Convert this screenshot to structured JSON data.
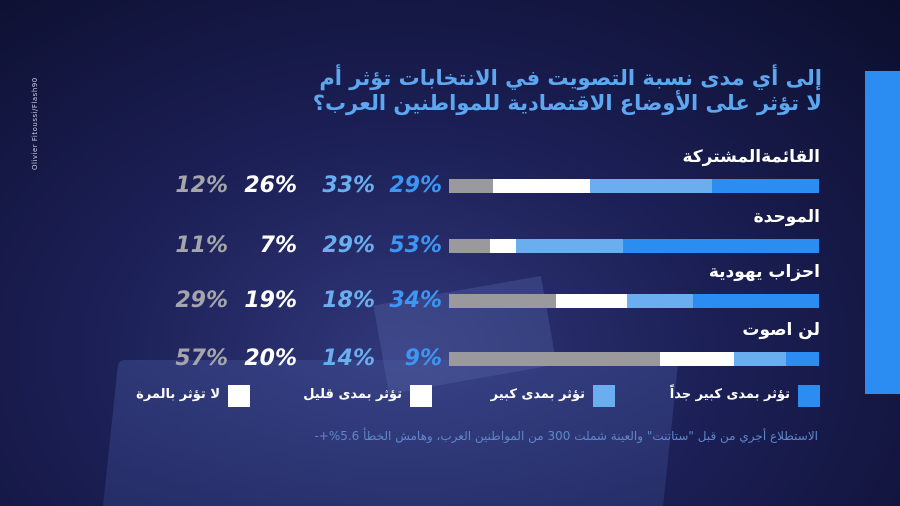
{
  "credit": "Olivier Fitoussi/Flash90",
  "title": "إلى أي مدى نسبة التصويت في الانتخابات تؤثر أم لا تؤثر على الأوضاع الاقتصادية للمواطنين العرب؟",
  "colors": {
    "very_large": "#2b8cf2",
    "large": "#6aaef0",
    "small": "#ffffff",
    "none": "#9a9a9e",
    "pct_very_large": "#3d95f4",
    "pct_large": "#6aaef0",
    "pct_small": "#ffffff",
    "pct_none": "#a5a5ac",
    "row4_remainder": "#5a6a9a"
  },
  "legend": [
    {
      "label": "تؤثر بمدى كبير جداً",
      "color": "#2b8cf2"
    },
    {
      "label": "تؤثر بمدى كبير",
      "color": "#6aaef0"
    },
    {
      "label": "تؤثر بمدى قليل",
      "color": "#ffffff"
    },
    {
      "label": "لا تؤثر بالمرة",
      "color": "#ffffff"
    }
  ],
  "chart_data": {
    "type": "bar",
    "orientation": "horizontal-stacked",
    "title": "إلى أي مدى نسبة التصويت في الانتخابات تؤثر أم لا تؤثر على الأوضاع الاقتصادية للمواطنين العرب؟",
    "categories": [
      "القائمةالمشتركة",
      "الموحدة",
      "احزاب يهودية",
      "لن اصوت"
    ],
    "series": [
      {
        "name": "تؤثر بمدى كبير جداً",
        "values": [
          29,
          53,
          34,
          9
        ]
      },
      {
        "name": "تؤثر بمدى كبير",
        "values": [
          33,
          29,
          18,
          14
        ]
      },
      {
        "name": "تؤثر بمدى قليل",
        "values": [
          26,
          7,
          19,
          20
        ]
      },
      {
        "name": "لا تؤثر بالمرة",
        "values": [
          12,
          11,
          29,
          57
        ]
      }
    ],
    "value_labels": [
      [
        "29%",
        "33%",
        "26%",
        "12%"
      ],
      [
        "53%",
        "29%",
        "7%",
        "11%"
      ],
      [
        "34%",
        "18%",
        "19%",
        "29%"
      ],
      [
        "9%",
        "14%",
        "20%",
        "57%"
      ]
    ],
    "unit": "%"
  },
  "footnote": "الاستطلاع أجري من قبل \"ستاتنت\" والعينة شملت 300 من المواطنين العرب، وهامش الخطأ 5.6%+-"
}
